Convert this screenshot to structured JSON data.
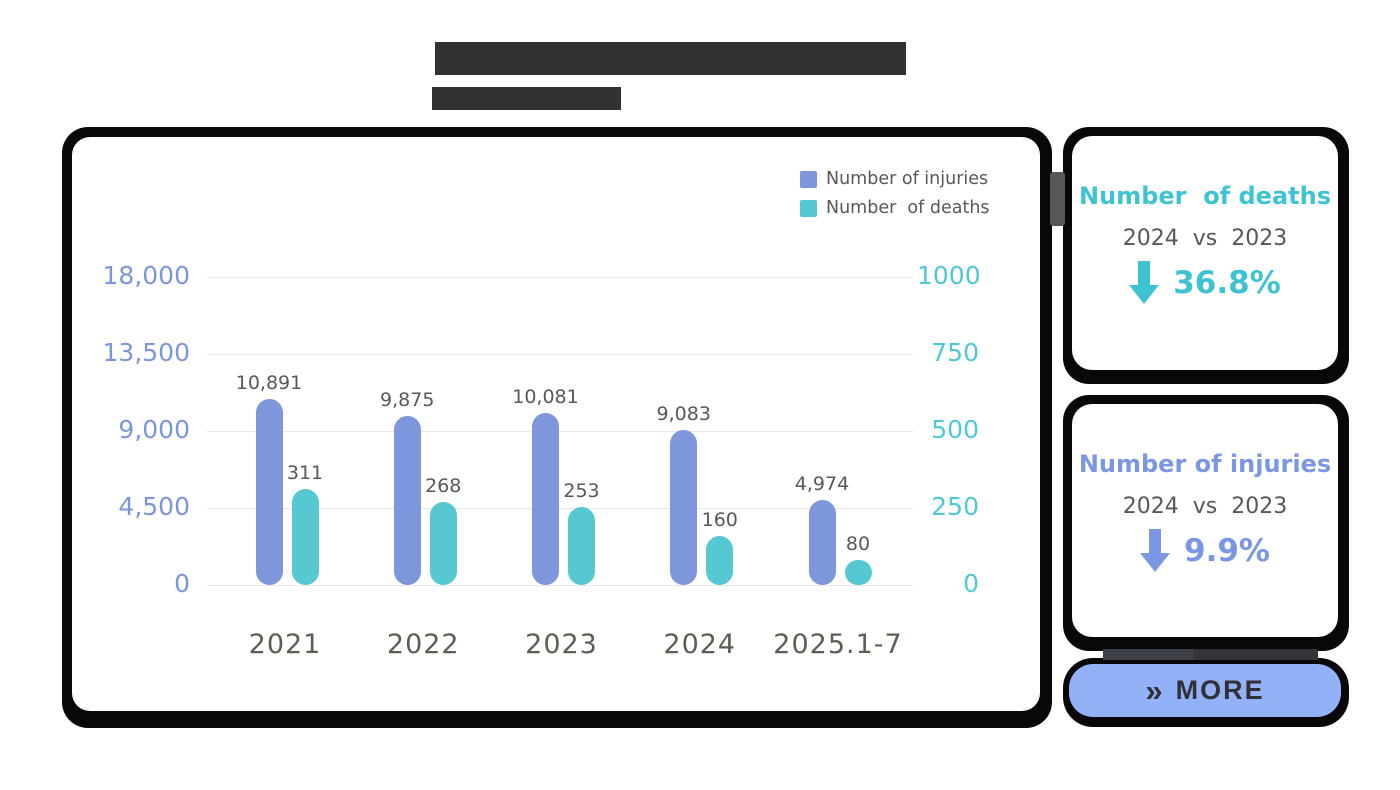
{
  "colors": {
    "injuries_blue": "#7e96db",
    "deaths_teal": "#55c8d2",
    "left_axis_blue": "#7b96db",
    "right_axis_teal": "#4fc9d6",
    "data_label_gray": "#595757",
    "x_label_gray": "#615c51",
    "card_deaths_accent": "#3ec3d3",
    "card_injuries_accent": "#7b97e3",
    "more_button_bg": "#93b1f6",
    "more_button_text": "#2f3136",
    "frame_black": "#0a070a",
    "masked_block_gray": "#323232",
    "gridline_gray": "#e8e8e8"
  },
  "chart_data": {
    "type": "bar",
    "title": "",
    "categories": [
      "2021",
      "2022",
      "2023",
      "2024",
      "2025.1-7"
    ],
    "series": [
      {
        "name": "Number of injuries",
        "axis": "left",
        "color": "#7e96db",
        "values": [
          10891,
          9875,
          10081,
          9083,
          4974
        ],
        "labels": [
          "10,891",
          "9,875",
          "10,081",
          "9,083",
          "4,974"
        ]
      },
      {
        "name": "Number  of deaths",
        "axis": "right",
        "color": "#55c8d2",
        "values": [
          311,
          268,
          253,
          160,
          80
        ],
        "labels": [
          "311",
          "268",
          "253",
          "160",
          "80"
        ]
      }
    ],
    "left_axis": {
      "ticks": [
        "18,000",
        "13,500",
        "9,000",
        "4,500",
        "0"
      ],
      "min": 0,
      "max": 18000,
      "color": "#7b96db"
    },
    "right_axis": {
      "ticks": [
        "1000",
        "750",
        "500",
        "250",
        "0"
      ],
      "min": 0,
      "max": 1000,
      "color": "#4fc9d6"
    },
    "legend_position": "top-right",
    "grid": true
  },
  "cards": [
    {
      "title": "Number  of deaths",
      "compare": "2024  vs  2023",
      "delta": "36.8%",
      "direction": "down",
      "accent": "#3ec3d3"
    },
    {
      "title": "Number of injuries",
      "compare": "2024  vs  2023",
      "delta": "9.9%",
      "direction": "down",
      "accent": "#7b97e3"
    }
  ],
  "more_button": {
    "chevron": "»",
    "label": "MORE"
  }
}
